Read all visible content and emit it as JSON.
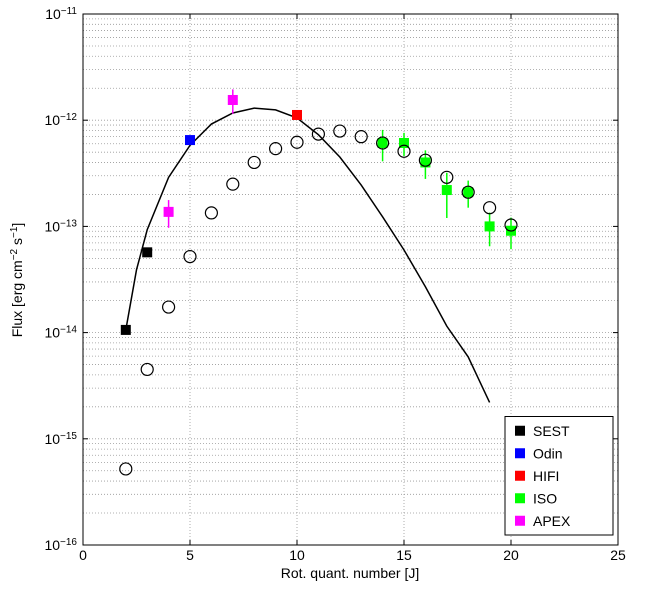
{
  "chart_data": {
    "type": "scatter",
    "xlabel": "Rot. quant. number [J]",
    "ylabel": "Flux [erg cm−2 s−1]",
    "xlim": [
      0,
      25
    ],
    "xticks": [
      0,
      5,
      10,
      15,
      20,
      25
    ],
    "ylim": [
      1e-16,
      1e-11
    ],
    "log_y": true,
    "yticks": [
      {
        "value": 1e-16,
        "label": "10−16"
      },
      {
        "value": 1e-15,
        "label": "10−15"
      },
      {
        "value": 1e-14,
        "label": "10−14"
      },
      {
        "value": 1e-13,
        "label": "10−13"
      },
      {
        "value": 1e-12,
        "label": "10−12"
      },
      {
        "value": 1e-11,
        "label": "10−11"
      }
    ],
    "grid": true,
    "legend": "lower right",
    "series": [
      {
        "marker": "open-circle",
        "color": "#000000",
        "x": [
          2,
          3,
          4,
          5,
          6,
          7,
          8,
          9,
          10,
          11,
          12,
          13,
          14,
          15,
          16,
          17,
          18,
          19,
          20
        ],
        "values": [
          5.2e-16,
          4.5e-15,
          1.74e-14,
          5.2e-14,
          1.34e-13,
          2.5e-13,
          4e-13,
          5.4e-13,
          6.2e-13,
          7.4e-13,
          7.9e-13,
          7e-13,
          6.1e-13,
          5.1e-13,
          4.2e-13,
          2.9e-13,
          2.1e-13,
          1.5e-13,
          1.03e-13
        ]
      },
      {
        "name": "SEST",
        "marker": "square",
        "color": "#000000",
        "x": [
          2,
          3
        ],
        "values": [
          1.06e-14,
          5.7e-14
        ]
      },
      {
        "name": "Odin",
        "marker": "square",
        "color": "#0000ff",
        "x": [
          5
        ],
        "values": [
          6.5e-13
        ]
      },
      {
        "name": "HIFI",
        "marker": "square",
        "color": "#ff0000",
        "x": [
          10
        ],
        "values": [
          1.12e-12
        ]
      },
      {
        "name": "ISO",
        "marker": "square",
        "color": "#00ff00",
        "x": [
          14,
          15,
          16,
          17,
          18,
          19,
          20
        ],
        "values": [
          6.1e-13,
          6.1e-13,
          4e-13,
          2.2e-13,
          2.1e-13,
          1e-13,
          9.1e-14
        ],
        "errors": [
          2e-13,
          1.5e-13,
          1.2e-13,
          1e-13,
          6e-14,
          3.5e-14,
          3e-14
        ]
      },
      {
        "name": "APEX",
        "marker": "square",
        "color": "#ff00ff",
        "x": [
          4,
          7
        ],
        "values": [
          1.37e-13,
          1.55e-12
        ],
        "errors": [
          4e-14,
          4e-13
        ]
      },
      {
        "marker": "line",
        "color": "#000000",
        "x": [
          2,
          2.5,
          3,
          4,
          5,
          6,
          7,
          8,
          9,
          10,
          11,
          12,
          13,
          14,
          15,
          16,
          17,
          18,
          18.5,
          19
        ],
        "values": [
          1.06e-14,
          3.9e-14,
          9.3e-14,
          2.9e-13,
          5.8e-13,
          9.2e-13,
          1.17e-12,
          1.3e-12,
          1.25e-12,
          1.05e-12,
          7.3e-13,
          4.5e-13,
          2.45e-13,
          1.23e-13,
          6e-14,
          2.7e-14,
          1.15e-14,
          5.9e-15,
          3.6e-15,
          2.2e-15
        ]
      }
    ]
  }
}
